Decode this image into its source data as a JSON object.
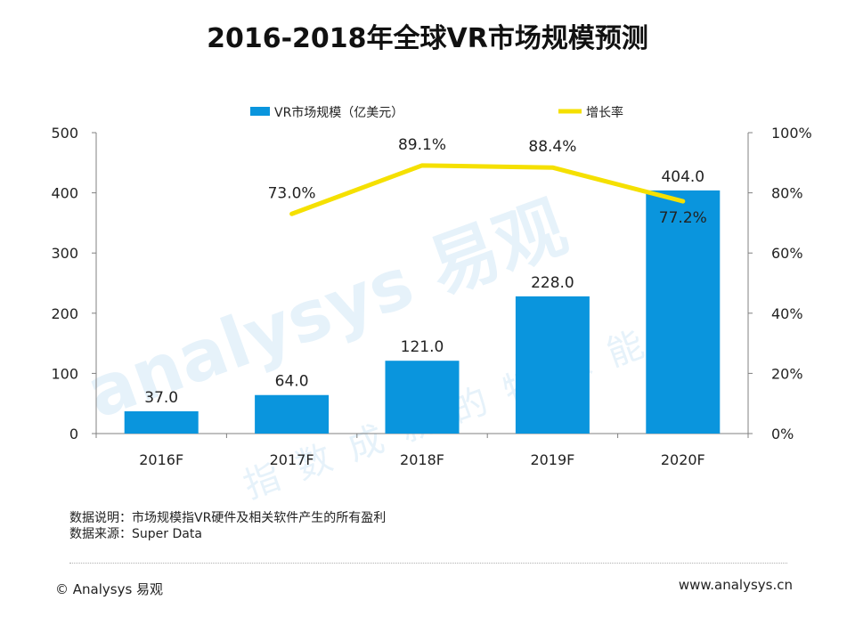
{
  "page": {
    "title": "2016-2018年全球VR市场规模预测"
  },
  "notes": {
    "line1": "数据说明：市场规模指VR硬件及相关软件产生的所有盈利",
    "line2": "数据来源：Super Data"
  },
  "footer": {
    "copyright_symbol": "©",
    "brand": "Analysys 易观",
    "url": "www.analysys.cn"
  },
  "watermark": {
    "text1": "analysys 易观",
    "text2": "指数成就的特殊能"
  },
  "colors": {
    "bar": "#0a95dd",
    "line": "#f5e000",
    "watermark": "#e6f2fa"
  },
  "chart_data": {
    "type": "bar",
    "categories": [
      "2016F",
      "2017F",
      "2018F",
      "2019F",
      "2020F"
    ],
    "series": [
      {
        "name": "VR市场规模（亿美元）",
        "type": "bar",
        "axis": "left",
        "values": [
          37.0,
          64.0,
          121.0,
          228.0,
          404.0
        ],
        "labels": [
          "37.0",
          "64.0",
          "121.0",
          "228.0",
          "404.0"
        ]
      },
      {
        "name": "增长率",
        "type": "line",
        "axis": "right",
        "values": [
          null,
          73.0,
          89.1,
          88.4,
          77.2
        ],
        "labels": [
          "",
          "73.0%",
          "89.1%",
          "88.4%",
          "77.2%"
        ]
      }
    ],
    "y_left": {
      "min": 0,
      "max": 500,
      "ticks": [
        "0",
        "100",
        "200",
        "300",
        "400",
        "500"
      ]
    },
    "y_right": {
      "min": 0,
      "max": 100,
      "ticks": [
        "0%",
        "20%",
        "40%",
        "60%",
        "80%",
        "100%"
      ]
    },
    "legend_position": "top-center",
    "grid": false
  }
}
